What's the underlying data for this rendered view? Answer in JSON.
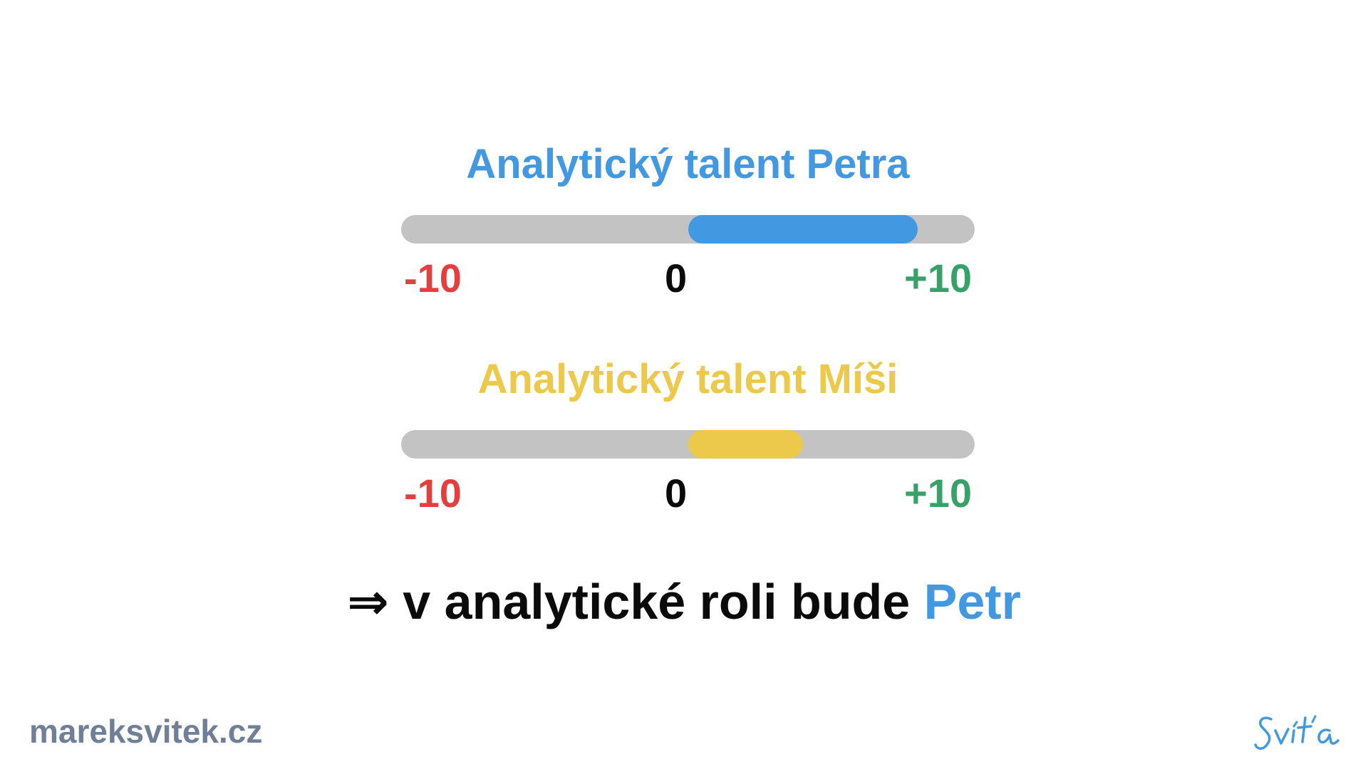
{
  "colors": {
    "petr": "#4299e1",
    "misa": "#ecc94b",
    "track": "#c3c3c3",
    "negative": "#e53e3e",
    "neutral": "#0a0a0a",
    "positive": "#38a169",
    "footer": "#6f7f97"
  },
  "scales": [
    {
      "title": "Analytický talent Petra",
      "color": "#4299e1",
      "range_min": -10,
      "range_max": 10,
      "value_from": 0,
      "value_to": 8,
      "min_label": "-10",
      "mid_label": "0",
      "max_label": "+10"
    },
    {
      "title": "Analytický talent Míši",
      "color": "#ecc94b",
      "range_min": -10,
      "range_max": 10,
      "value_from": 0,
      "value_to": 4,
      "min_label": "-10",
      "mid_label": "0",
      "max_label": "+10"
    }
  ],
  "conclusion": {
    "arrow": "⇒",
    "text": " v analytické roli bude ",
    "highlight": "Petr"
  },
  "footer": {
    "site": "mareksvitek.cz",
    "signature": "Sviťa"
  }
}
